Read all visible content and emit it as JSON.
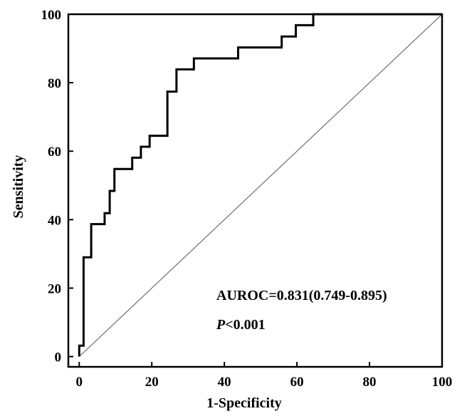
{
  "chart_data": {
    "type": "line",
    "xlabel": "1-Specificity",
    "ylabel": "Sensitivity",
    "xlim": [
      -3,
      100
    ],
    "ylim": [
      -3,
      100
    ],
    "x_ticks": [
      0,
      20,
      40,
      60,
      80,
      100
    ],
    "y_ticks": [
      0,
      20,
      40,
      60,
      80,
      100
    ],
    "grid": false,
    "series": [
      {
        "style": "step",
        "x": [
          0,
          0,
          1.2,
          1.2,
          3.3,
          3.3,
          7.0,
          7.0,
          8.4,
          8.4,
          9.7,
          9.7,
          14.6,
          14.6,
          17.0,
          17.0,
          19.4,
          19.4,
          24.3,
          24.3,
          26.8,
          26.8,
          31.6,
          31.6,
          43.8,
          43.8,
          55.8,
          55.8,
          59.7,
          59.7,
          64.5,
          64.5,
          100
        ],
        "y": [
          0,
          3.2,
          3.2,
          29.0,
          29.0,
          38.7,
          38.7,
          41.9,
          41.9,
          48.4,
          48.4,
          54.8,
          54.8,
          58.1,
          58.1,
          61.3,
          61.3,
          64.5,
          64.5,
          77.4,
          77.4,
          83.9,
          83.9,
          87.1,
          87.1,
          90.3,
          90.3,
          93.5,
          93.5,
          96.8,
          96.8,
          100,
          100
        ]
      },
      {
        "style": "reference",
        "x": [
          0,
          100
        ],
        "y": [
          0,
          100
        ]
      }
    ],
    "annotations": {
      "auroc": "AUROC=0.831(0.749-0.895)",
      "p_letter": "P",
      "p_rest": "<0.001"
    }
  }
}
